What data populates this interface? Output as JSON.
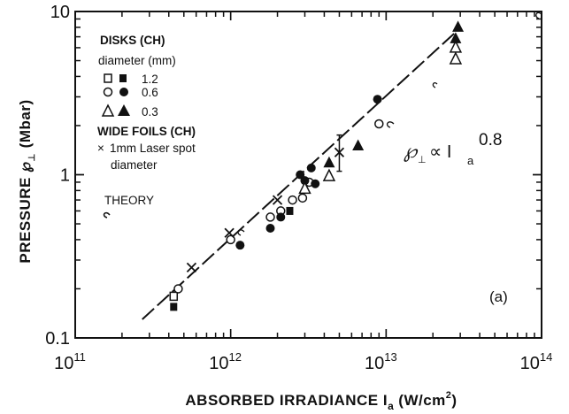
{
  "chart_data": {
    "type": "scatter",
    "x_scale": "log",
    "y_scale": "log",
    "xlim": [
      100000000000.0,
      100000000000000.0
    ],
    "ylim": [
      0.1,
      10
    ],
    "xlabel": "ABSORBED IRRADIANCE I",
    "xlabel_sub": "a",
    "xlabel_unit_open": "(W/cm",
    "xlabel_unit_sup": "2",
    "xlabel_unit_close": ")",
    "ylabel": "PRESSURE ℘",
    "ylabel_sub": "⊥",
    "ylabel_unit": "(Mbar)",
    "x_ticks": [
      {
        "value": 100000000000.0,
        "base": "10",
        "exp": "11"
      },
      {
        "value": 1000000000000.0,
        "base": "10",
        "exp": "12"
      },
      {
        "value": 10000000000000.0,
        "base": "10",
        "exp": "13"
      },
      {
        "value": 100000000000000.0,
        "base": "10",
        "exp": "14"
      }
    ],
    "y_ticks": [
      {
        "value": 0.1,
        "label": "0.1"
      },
      {
        "value": 1,
        "label": "1"
      },
      {
        "value": 10,
        "label": "10"
      }
    ],
    "legend": {
      "title": "DISKS (CH)",
      "subtitle": "diameter (mm)",
      "entries": [
        {
          "shape": "square",
          "label": "1.2"
        },
        {
          "shape": "circle",
          "label": "0.6"
        },
        {
          "shape": "triangle",
          "label": "0.3"
        }
      ],
      "foils_title": "WIDE FOILS (CH)",
      "foils_marker": "×",
      "foils_line1": "1mm Laser spot",
      "foils_line2": "diameter"
    },
    "theory_label": "THEORY",
    "scaling_label": {
      "p": "℘",
      "sub": "⊥",
      "prop": "∝ I",
      "sub2": "a",
      "exp": "0.8"
    },
    "panel_label": "(a)",
    "theory_line": {
      "x": [
        270000000000.0,
        29000000000000.0
      ],
      "y": [
        0.13,
        7.7
      ]
    },
    "series": [
      {
        "name": "1.2",
        "marker": "square-open",
        "x": [
          430000000000.0
        ],
        "y": [
          0.18
        ]
      },
      {
        "name": "1.2",
        "marker": "square-filled",
        "x": [
          430000000000.0,
          2400000000000.0
        ],
        "y": [
          0.155,
          0.6
        ]
      },
      {
        "name": "0.6",
        "marker": "circle-open",
        "x": [
          460000000000.0,
          1000000000000.0,
          1800000000000.0,
          2100000000000.0,
          2500000000000.0,
          2900000000000.0,
          3200000000000.0,
          9000000000000.0
        ],
        "y": [
          0.2,
          0.4,
          0.55,
          0.6,
          0.7,
          0.72,
          0.9,
          2.05
        ]
      },
      {
        "name": "0.6",
        "marker": "circle-filled",
        "x": [
          1150000000000.0,
          1800000000000.0,
          2100000000000.0,
          2800000000000.0,
          3000000000000.0,
          3300000000000.0,
          3500000000000.0,
          8800000000000.0
        ],
        "y": [
          0.37,
          0.47,
          0.55,
          1.0,
          0.92,
          1.1,
          0.88,
          2.9
        ]
      },
      {
        "name": "0.3",
        "marker": "triangle-open",
        "x": [
          3000000000000.0,
          4300000000000.0,
          28000000000000.0,
          28000000000000.0
        ],
        "y": [
          0.82,
          0.98,
          5.1,
          6.0
        ]
      },
      {
        "name": "0.3",
        "marker": "triangle-filled",
        "x": [
          4300000000000.0,
          6600000000000.0,
          28000000000000.0,
          29000000000000.0
        ],
        "y": [
          1.18,
          1.5,
          6.8,
          8.0
        ]
      },
      {
        "name": "WIDE FOILS (CH)",
        "marker": "x",
        "x": [
          560000000000.0,
          980000000000.0,
          2000000000000.0,
          5000000000000.0
        ],
        "y": [
          0.27,
          0.44,
          0.7,
          1.37
        ]
      }
    ],
    "error_bars": [
      {
        "x": 5000000000000.0,
        "ylow": 1.05,
        "yhigh": 1.75
      }
    ]
  }
}
